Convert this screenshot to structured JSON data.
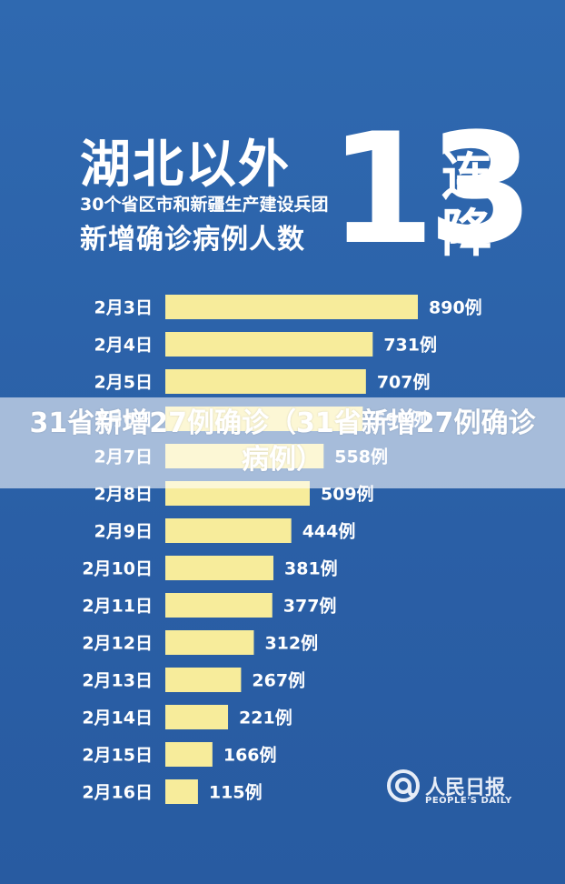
{
  "header": {
    "title": "湖北以外",
    "subtitle": "30个省区市和新疆生产建设兵团",
    "metric": "新增确诊病例人数",
    "big_number": "13",
    "tag_top": "连",
    "tag_bottom": "降"
  },
  "overlay": {
    "caption": "31省新增27例确诊（31省新增27例确诊病例）"
  },
  "logo": {
    "name": "人民日报",
    "english": "PEOPLE'S DAILY"
  },
  "colors": {
    "background": "#2b62a8",
    "bar": "#f7ec9b",
    "text": "#ffffff"
  },
  "chart_data": {
    "type": "bar",
    "orientation": "horizontal",
    "categories": [
      "2月3日",
      "2月4日",
      "2月5日",
      "2月6日",
      "2月7日",
      "2月8日",
      "2月9日",
      "2月10日",
      "2月11日",
      "2月12日",
      "2月13日",
      "2月14日",
      "2月15日",
      "2月16日"
    ],
    "values": [
      890,
      731,
      707,
      696,
      558,
      509,
      444,
      381,
      377,
      312,
      267,
      221,
      166,
      115
    ],
    "value_labels": [
      "890例",
      "731例",
      "707例",
      "696例",
      "558例",
      "509例",
      "444例",
      "381例",
      "377例",
      "312例",
      "267例",
      "221例",
      "166例",
      "115例"
    ],
    "grid": false,
    "legend": "none"
  }
}
